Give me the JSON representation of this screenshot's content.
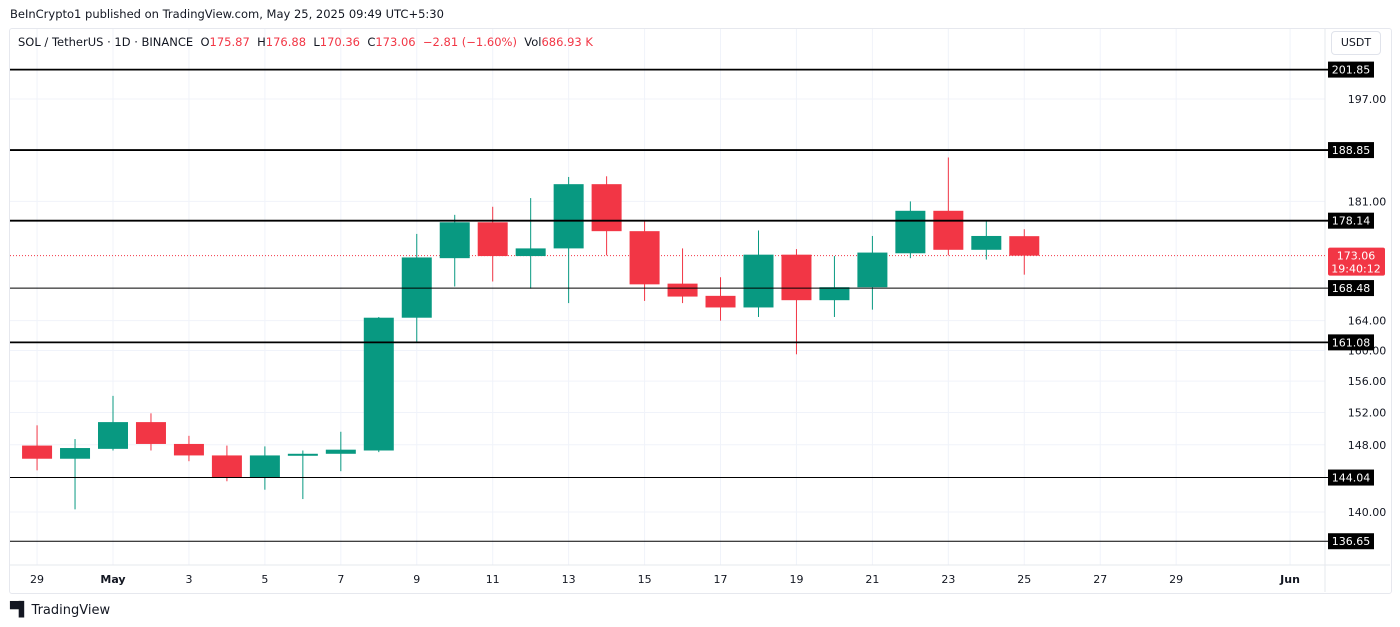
{
  "publisher": "BeInCrypto1 published on TradingView.com, May 25, 2025 09:49 UTC+5:30",
  "legend": {
    "symbol": "SOL / TetherUS · 1D · BINANCE",
    "o_label": "O",
    "o": "175.87",
    "h_label": "H",
    "h": "176.88",
    "l_label": "L",
    "l": "170.36",
    "c_label": "C",
    "c": "173.06",
    "change": "−2.81 (−1.60%)",
    "vol_label": "Vol",
    "vol": "686.93 K"
  },
  "currency_button": "USDT",
  "footer": {
    "logo": "TV",
    "brand": "TradingView"
  },
  "colors": {
    "up": "#089981",
    "down": "#f23645",
    "level": "#000000",
    "grid": "#f0f3fa"
  },
  "chart_data": {
    "type": "candlestick",
    "title": "",
    "y_scale": "log",
    "ylim": [
      133,
      206
    ],
    "x_range": [
      "2025-04-28",
      "2025-06-01"
    ],
    "grid": true,
    "x_ticks": [
      {
        "date": "2025-04-29",
        "label": "29"
      },
      {
        "date": "2025-05-01",
        "label": "May"
      },
      {
        "date": "2025-05-03",
        "label": "3"
      },
      {
        "date": "2025-05-05",
        "label": "5"
      },
      {
        "date": "2025-05-07",
        "label": "7"
      },
      {
        "date": "2025-05-09",
        "label": "9"
      },
      {
        "date": "2025-05-11",
        "label": "11"
      },
      {
        "date": "2025-05-13",
        "label": "13"
      },
      {
        "date": "2025-05-15",
        "label": "15"
      },
      {
        "date": "2025-05-17",
        "label": "17"
      },
      {
        "date": "2025-05-19",
        "label": "19"
      },
      {
        "date": "2025-05-21",
        "label": "21"
      },
      {
        "date": "2025-05-23",
        "label": "23"
      },
      {
        "date": "2025-05-25",
        "label": "25"
      },
      {
        "date": "2025-05-27",
        "label": "27"
      },
      {
        "date": "2025-05-29",
        "label": "29"
      },
      {
        "date": "2025-06-01",
        "label": "Jun"
      }
    ],
    "y_ticks": [
      "197.00",
      "181.00",
      "164.00",
      "160.00",
      "156.00",
      "152.00",
      "148.00",
      "140.00"
    ],
    "levels": [
      {
        "value": "201.85",
        "bold": true
      },
      {
        "value": "188.85",
        "bold": true
      },
      {
        "value": "178.14",
        "bold": true
      },
      {
        "value": "168.48",
        "bold": false
      },
      {
        "value": "161.08",
        "bold": true
      },
      {
        "value": "144.04",
        "bold": false
      },
      {
        "value": "136.65",
        "bold": false
      }
    ],
    "last_price": {
      "value": "173.06",
      "countdown": "19:40:12"
    },
    "candles": [
      {
        "date": "2025-04-29",
        "o": 147.9,
        "h": 150.4,
        "l": 144.9,
        "c": 146.3
      },
      {
        "date": "2025-04-30",
        "o": 146.3,
        "h": 148.7,
        "l": 140.3,
        "c": 147.6
      },
      {
        "date": "2025-05-01",
        "o": 147.5,
        "h": 154.1,
        "l": 147.3,
        "c": 150.8
      },
      {
        "date": "2025-05-02",
        "o": 150.8,
        "h": 151.9,
        "l": 147.3,
        "c": 148.1
      },
      {
        "date": "2025-05-03",
        "o": 148.1,
        "h": 149.1,
        "l": 146.0,
        "c": 146.7
      },
      {
        "date": "2025-05-04",
        "o": 146.7,
        "h": 147.9,
        "l": 143.6,
        "c": 144.0
      },
      {
        "date": "2025-05-05",
        "o": 144.0,
        "h": 147.8,
        "l": 142.6,
        "c": 146.7
      },
      {
        "date": "2025-05-06",
        "o": 146.8,
        "h": 147.3,
        "l": 141.5,
        "c": 146.9
      },
      {
        "date": "2025-05-07",
        "o": 146.9,
        "h": 149.6,
        "l": 144.8,
        "c": 147.4
      },
      {
        "date": "2025-05-08",
        "o": 147.3,
        "h": 164.5,
        "l": 147.1,
        "c": 164.4
      },
      {
        "date": "2025-05-09",
        "o": 164.4,
        "h": 176.2,
        "l": 161.2,
        "c": 172.8
      },
      {
        "date": "2025-05-10",
        "o": 172.7,
        "h": 179.0,
        "l": 168.7,
        "c": 177.9
      },
      {
        "date": "2025-05-11",
        "o": 177.9,
        "h": 180.2,
        "l": 169.4,
        "c": 173.0
      },
      {
        "date": "2025-05-12",
        "o": 173.0,
        "h": 181.5,
        "l": 168.4,
        "c": 174.1
      },
      {
        "date": "2025-05-13",
        "o": 174.1,
        "h": 184.7,
        "l": 166.4,
        "c": 183.6
      },
      {
        "date": "2025-05-14",
        "o": 183.6,
        "h": 184.8,
        "l": 173.1,
        "c": 176.6
      },
      {
        "date": "2025-05-15",
        "o": 176.6,
        "h": 178.1,
        "l": 166.7,
        "c": 169.0
      },
      {
        "date": "2025-05-16",
        "o": 169.1,
        "h": 174.1,
        "l": 166.4,
        "c": 167.3
      },
      {
        "date": "2025-05-17",
        "o": 167.4,
        "h": 170.0,
        "l": 164.0,
        "c": 165.8
      },
      {
        "date": "2025-05-18",
        "o": 165.8,
        "h": 176.7,
        "l": 164.5,
        "c": 173.2
      },
      {
        "date": "2025-05-19",
        "o": 173.2,
        "h": 174.0,
        "l": 159.5,
        "c": 166.8
      },
      {
        "date": "2025-05-20",
        "o": 166.8,
        "h": 173.0,
        "l": 164.5,
        "c": 168.6
      },
      {
        "date": "2025-05-21",
        "o": 168.6,
        "h": 175.9,
        "l": 165.5,
        "c": 173.5
      },
      {
        "date": "2025-05-22",
        "o": 173.4,
        "h": 181.0,
        "l": 172.7,
        "c": 179.6
      },
      {
        "date": "2025-05-23",
        "o": 179.6,
        "h": 187.7,
        "l": 173.1,
        "c": 173.9
      },
      {
        "date": "2025-05-24",
        "o": 173.9,
        "h": 178.2,
        "l": 172.5,
        "c": 175.9
      },
      {
        "date": "2025-05-25",
        "o": 175.87,
        "h": 176.88,
        "l": 170.36,
        "c": 173.06
      }
    ]
  }
}
